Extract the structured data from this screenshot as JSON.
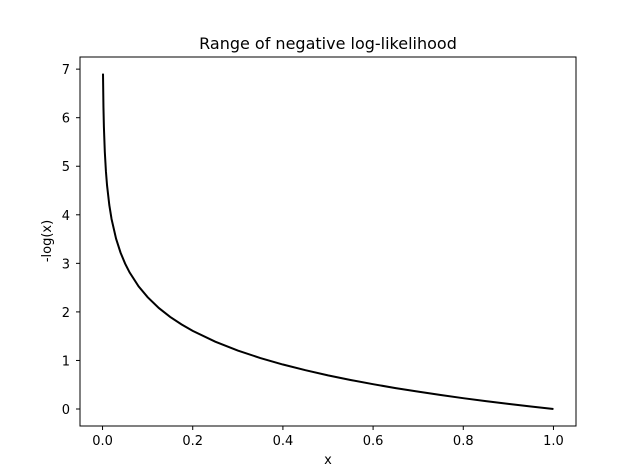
{
  "chart_data": {
    "type": "line",
    "title": "Range of negative log-likelihood",
    "xlabel": "x",
    "ylabel": "-log(x)",
    "xlim": [
      -0.05,
      1.05
    ],
    "ylim": [
      -0.35,
      7.25
    ],
    "xticks": [
      0.0,
      0.2,
      0.4,
      0.6,
      0.8,
      1.0
    ],
    "xtick_labels": [
      "0.0",
      "0.2",
      "0.4",
      "0.6",
      "0.8",
      "1.0"
    ],
    "yticks": [
      0,
      1,
      2,
      3,
      4,
      5,
      6,
      7
    ],
    "ytick_labels": [
      "0",
      "1",
      "2",
      "3",
      "4",
      "5",
      "6",
      "7"
    ],
    "grid": false,
    "series": [
      {
        "color": "#000000",
        "x": [
          0.001,
          0.002,
          0.003,
          0.005,
          0.0075,
          0.01,
          0.015,
          0.02,
          0.03,
          0.04,
          0.05,
          0.06,
          0.08,
          0.1,
          0.125,
          0.15,
          0.175,
          0.2,
          0.25,
          0.3,
          0.35,
          0.4,
          0.45,
          0.5,
          0.55,
          0.6,
          0.65,
          0.7,
          0.75,
          0.8,
          0.85,
          0.9,
          0.95,
          1.0
        ],
        "y": [
          6.908,
          6.215,
          5.809,
          5.298,
          4.893,
          4.605,
          4.2,
          3.912,
          3.507,
          3.219,
          2.996,
          2.813,
          2.526,
          2.303,
          2.079,
          1.897,
          1.743,
          1.609,
          1.386,
          1.204,
          1.05,
          0.916,
          0.799,
          0.693,
          0.598,
          0.511,
          0.431,
          0.357,
          0.288,
          0.223,
          0.163,
          0.105,
          0.051,
          0.0
        ]
      }
    ]
  }
}
